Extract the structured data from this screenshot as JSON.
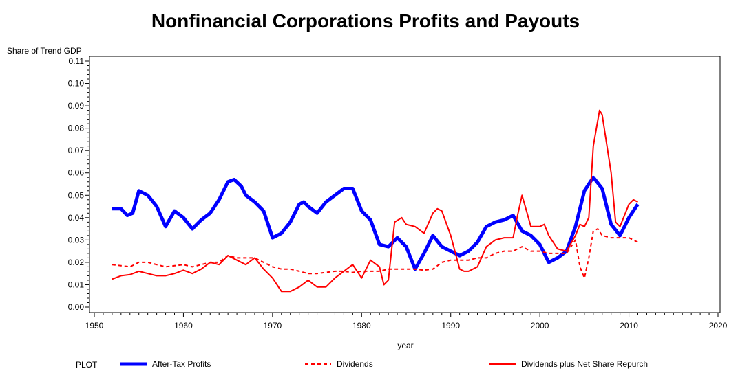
{
  "chart_data": {
    "type": "line",
    "title": "Nonfinancial Corporations Profits and Payouts",
    "xlabel": "year",
    "ylabel": "Share of Trend GDP",
    "xlim": [
      1950,
      2020
    ],
    "ylim": [
      0.0,
      0.11
    ],
    "xticks": [
      "1950",
      "1960",
      "1970",
      "1980",
      "1990",
      "2000",
      "2010",
      "2020"
    ],
    "yticks": [
      "0.00",
      "0.01",
      "0.02",
      "0.03",
      "0.04",
      "0.05",
      "0.06",
      "0.07",
      "0.08",
      "0.09",
      "0.10",
      "0.11"
    ],
    "legend_title": "PLOT",
    "legend_position": "bottom",
    "series": [
      {
        "name": "After-Tax Profits",
        "color": "#0000ff",
        "style": "thick-solid",
        "x": [
          1952,
          1953,
          1953.7,
          1954.3,
          1955,
          1956,
          1957,
          1958,
          1959,
          1960,
          1961,
          1962,
          1963,
          1964,
          1965,
          1965.7,
          1966.5,
          1967,
          1968,
          1969,
          1970,
          1971,
          1972,
          1973,
          1973.5,
          1974,
          1975,
          1976,
          1977,
          1978,
          1979,
          1980,
          1981,
          1982,
          1983,
          1984,
          1985,
          1986,
          1987,
          1988,
          1989,
          1990,
          1991,
          1992,
          1993,
          1994,
          1995,
          1996,
          1997,
          1998,
          1999,
          2000,
          2001,
          2002,
          2003,
          2004,
          2005,
          2006,
          2007,
          2008,
          2009,
          2010,
          2011
        ],
        "y": [
          0.044,
          0.044,
          0.041,
          0.042,
          0.052,
          0.05,
          0.045,
          0.036,
          0.043,
          0.04,
          0.035,
          0.039,
          0.042,
          0.048,
          0.056,
          0.057,
          0.054,
          0.05,
          0.047,
          0.043,
          0.031,
          0.033,
          0.038,
          0.046,
          0.047,
          0.045,
          0.042,
          0.047,
          0.05,
          0.053,
          0.053,
          0.043,
          0.039,
          0.028,
          0.027,
          0.031,
          0.027,
          0.017,
          0.024,
          0.032,
          0.027,
          0.025,
          0.023,
          0.025,
          0.029,
          0.036,
          0.038,
          0.039,
          0.041,
          0.034,
          0.032,
          0.028,
          0.02,
          0.022,
          0.025,
          0.036,
          0.052,
          0.058,
          0.053,
          0.037,
          0.032,
          0.04,
          0.046
        ]
      },
      {
        "name": "Dividends",
        "color": "#ff0000",
        "style": "dashed",
        "x": [
          1952,
          1953,
          1954,
          1955,
          1956,
          1957,
          1958,
          1959,
          1960,
          1961,
          1962,
          1963,
          1964,
          1965,
          1966,
          1967,
          1968,
          1969,
          1970,
          1971,
          1972,
          1973,
          1974,
          1975,
          1976,
          1977,
          1978,
          1979,
          1980,
          1981,
          1982,
          1983,
          1984,
          1985,
          1986,
          1987,
          1988,
          1989,
          1990,
          1991,
          1992,
          1993,
          1994,
          1995,
          1996,
          1997,
          1998,
          1999,
          2000,
          2001,
          2002,
          2003,
          2004,
          2004.5,
          2005,
          2005.5,
          2006,
          2006.5,
          2007,
          2008,
          2009,
          2010,
          2011
        ],
        "y": [
          0.019,
          0.0185,
          0.018,
          0.02,
          0.02,
          0.019,
          0.018,
          0.0185,
          0.019,
          0.018,
          0.019,
          0.02,
          0.02,
          0.023,
          0.022,
          0.022,
          0.022,
          0.02,
          0.018,
          0.017,
          0.017,
          0.016,
          0.015,
          0.015,
          0.0155,
          0.016,
          0.016,
          0.0155,
          0.016,
          0.016,
          0.016,
          0.017,
          0.017,
          0.017,
          0.017,
          0.0165,
          0.017,
          0.02,
          0.021,
          0.021,
          0.021,
          0.022,
          0.022,
          0.024,
          0.025,
          0.025,
          0.027,
          0.025,
          0.025,
          0.024,
          0.024,
          0.024,
          0.03,
          0.018,
          0.013,
          0.022,
          0.034,
          0.035,
          0.032,
          0.031,
          0.031,
          0.031,
          0.029
        ]
      },
      {
        "name": "Dividends plus Net Share Repurch",
        "color": "#ff0000",
        "style": "solid",
        "x": [
          1952,
          1953,
          1954,
          1955,
          1956,
          1957,
          1958,
          1959,
          1960,
          1961,
          1962,
          1963,
          1964,
          1965,
          1966,
          1967,
          1968,
          1969,
          1970,
          1971,
          1972,
          1973,
          1974,
          1975,
          1976,
          1977,
          1978,
          1979,
          1980,
          1981,
          1982,
          1982.5,
          1983,
          1983.7,
          1984.5,
          1985,
          1986,
          1987,
          1988,
          1988.5,
          1989,
          1990,
          1991,
          1991.5,
          1992,
          1993,
          1994,
          1995,
          1996,
          1997,
          1997.5,
          1998,
          1999,
          2000,
          2000.5,
          2001,
          2002,
          2003,
          2004,
          2004.5,
          2005,
          2005.5,
          2006,
          2006.7,
          2007,
          2008,
          2008.5,
          2009,
          2010,
          2010.5,
          2011
        ],
        "y": [
          0.0125,
          0.014,
          0.0145,
          0.016,
          0.015,
          0.014,
          0.014,
          0.015,
          0.0165,
          0.015,
          0.017,
          0.02,
          0.019,
          0.023,
          0.021,
          0.019,
          0.022,
          0.017,
          0.013,
          0.007,
          0.007,
          0.009,
          0.012,
          0.009,
          0.009,
          0.013,
          0.016,
          0.019,
          0.013,
          0.021,
          0.018,
          0.01,
          0.012,
          0.038,
          0.04,
          0.037,
          0.036,
          0.033,
          0.042,
          0.044,
          0.043,
          0.032,
          0.017,
          0.016,
          0.016,
          0.018,
          0.027,
          0.03,
          0.031,
          0.031,
          0.041,
          0.05,
          0.036,
          0.036,
          0.037,
          0.032,
          0.026,
          0.025,
          0.032,
          0.037,
          0.036,
          0.04,
          0.072,
          0.088,
          0.086,
          0.06,
          0.038,
          0.036,
          0.046,
          0.048,
          0.047
        ]
      }
    ]
  }
}
